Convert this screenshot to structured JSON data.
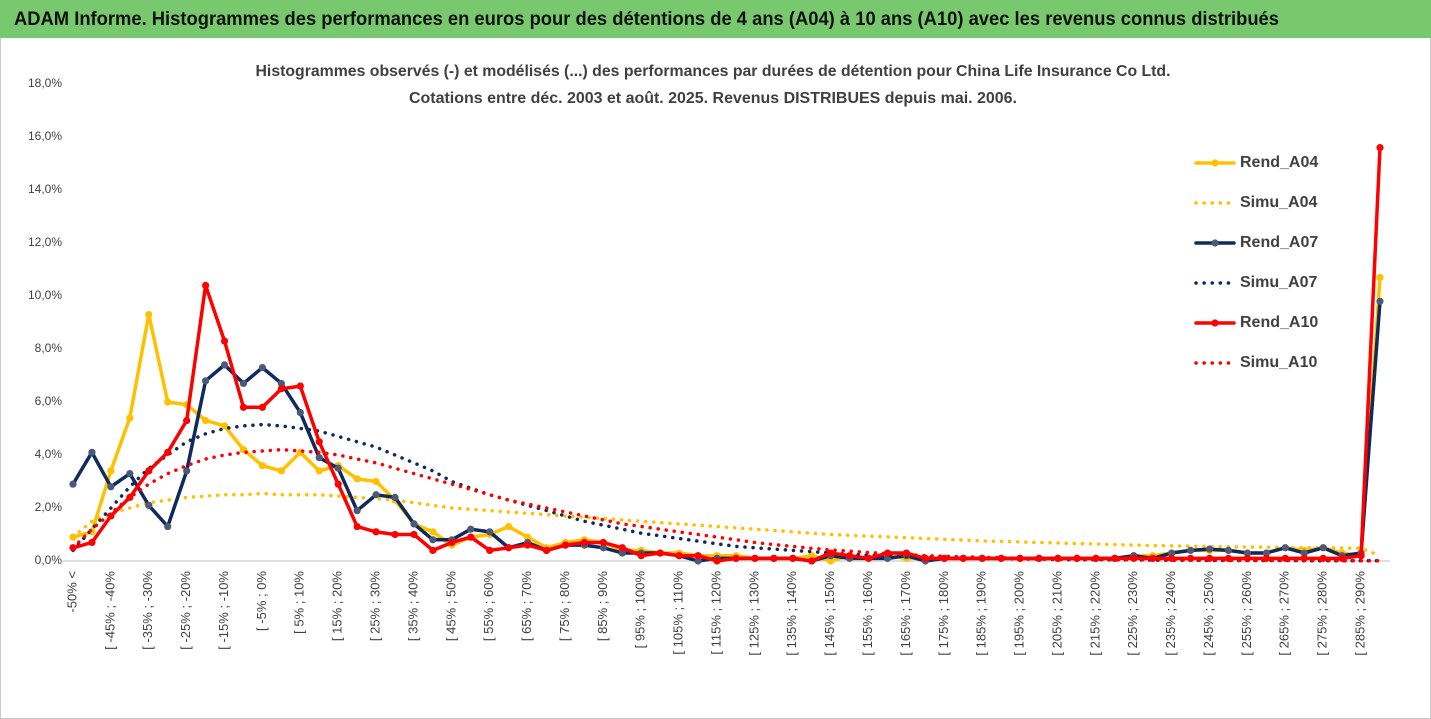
{
  "header": {
    "title": "ADAM Informe. Histogrammes des performances en euros pour des détentions de 4 ans (A04) à 10 ans (A10) avec les revenus connus distribués"
  },
  "chart_data": {
    "type": "line",
    "title": [
      "Histogrammes observés (-) et modélisés (...) des performances par durées de détention pour China Life Insurance Co Ltd.",
      "Cotations entre déc. 2003 et août. 2025. Revenus DISTRIBUES depuis mai. 2006."
    ],
    "categories": [
      "-50% <",
      null,
      "[ -45% ; -40%",
      null,
      "[ -35% ; -30%",
      null,
      "[ -25% ; -20%",
      null,
      "[ -15% ; -10%",
      null,
      "[ -5% ; 0%",
      null,
      "[ 5% ; 10%",
      null,
      "[ 15% ; 20%",
      null,
      "[ 25% ; 30%",
      null,
      "[ 35% ; 40%",
      null,
      "[ 45% ; 50%",
      null,
      "[ 55% ; 60%",
      null,
      "[ 65% ; 70%",
      null,
      "[ 75% ; 80%",
      null,
      "[ 85% ; 90%",
      null,
      "[ 95% ; 100%",
      null,
      "[ 105% ; 110%",
      null,
      "[ 115% ; 120%",
      null,
      "[ 125% ; 130%",
      null,
      "[ 135% ; 140%",
      null,
      "[ 145% ; 150%",
      null,
      "[ 155% ; 160%",
      null,
      "[ 165% ; 170%",
      null,
      "[ 175% ; 180%",
      null,
      "[ 185% ; 190%",
      null,
      "[ 195% ; 200%",
      null,
      "[ 205% ; 210%",
      null,
      "[ 215% ; 220%",
      null,
      "[ 225% ; 230%",
      null,
      "[ 235% ; 240%",
      null,
      "[ 245% ; 250%",
      null,
      "[ 255% ; 260%",
      null,
      "[ 265% ; 270%",
      null,
      "[ 275% ; 280%",
      null,
      "[ 285% ; 290%",
      null
    ],
    "series": [
      {
        "name": "Rend_A04",
        "color": "#ffc000",
        "style": "solid",
        "values": [
          0.9,
          1.1,
          3.4,
          5.4,
          9.3,
          6.0,
          5.9,
          5.3,
          5.1,
          4.2,
          3.6,
          3.4,
          4.1,
          3.4,
          3.6,
          3.1,
          3.0,
          2.3,
          1.4,
          1.1,
          0.6,
          0.9,
          1.0,
          1.3,
          0.9,
          0.5,
          0.7,
          0.8,
          0.7,
          0.4,
          0.4,
          0.3,
          0.3,
          0.2,
          0.2,
          0.2,
          0.1,
          0.1,
          0.1,
          0.2,
          0.0,
          0.2,
          0.1,
          0.2,
          0.1,
          0.1,
          0.1,
          0.1,
          0.1,
          0.1,
          0.1,
          0.1,
          0.1,
          0.1,
          0.1,
          0.1,
          0.2,
          0.2,
          0.3,
          0.4,
          0.4,
          0.4,
          0.3,
          0.3,
          0.5,
          0.4,
          0.5,
          0.3,
          0.2,
          10.7
        ]
      },
      {
        "name": "Simu_A04",
        "color": "#ffc000",
        "style": "dotted",
        "values": [
          0.9,
          1.5,
          1.8,
          2.0,
          2.2,
          2.3,
          2.4,
          2.45,
          2.5,
          2.5,
          2.55,
          2.5,
          2.5,
          2.5,
          2.45,
          2.4,
          2.35,
          2.3,
          2.2,
          2.1,
          2.0,
          1.95,
          1.9,
          1.85,
          1.8,
          1.75,
          1.7,
          1.65,
          1.6,
          1.55,
          1.5,
          1.45,
          1.4,
          1.35,
          1.3,
          1.25,
          1.2,
          1.15,
          1.1,
          1.05,
          1.0,
          0.97,
          0.94,
          0.91,
          0.88,
          0.85,
          0.82,
          0.79,
          0.76,
          0.74,
          0.72,
          0.7,
          0.68,
          0.66,
          0.64,
          0.62,
          0.6,
          0.58,
          0.57,
          0.56,
          0.55,
          0.54,
          0.53,
          0.52,
          0.51,
          0.5,
          0.5,
          0.49,
          0.48,
          0.2
        ]
      },
      {
        "name": "Rend_A07",
        "color": "#0f2a5c",
        "style": "solid",
        "values": [
          2.9,
          4.1,
          2.8,
          3.3,
          2.1,
          1.3,
          3.4,
          6.8,
          7.4,
          6.7,
          7.3,
          6.7,
          5.6,
          3.9,
          3.5,
          1.9,
          2.5,
          2.4,
          1.4,
          0.8,
          0.8,
          1.2,
          1.1,
          0.5,
          0.7,
          0.4,
          0.6,
          0.6,
          0.5,
          0.3,
          0.3,
          0.3,
          0.2,
          0.0,
          0.1,
          0.1,
          0.1,
          0.1,
          0.1,
          0.0,
          0.2,
          0.1,
          0.1,
          0.1,
          0.2,
          0.0,
          0.1,
          0.1,
          0.1,
          0.1,
          0.1,
          0.1,
          0.1,
          0.1,
          0.1,
          0.1,
          0.2,
          0.1,
          0.3,
          0.4,
          0.45,
          0.4,
          0.3,
          0.3,
          0.5,
          0.3,
          0.5,
          0.2,
          0.3,
          9.8
        ]
      },
      {
        "name": "Simu_A07",
        "color": "#0f2a5c",
        "style": "dotted",
        "values": [
          0.4,
          1.2,
          2.0,
          2.8,
          3.5,
          4.0,
          4.5,
          4.8,
          5.0,
          5.1,
          5.15,
          5.1,
          5.0,
          4.9,
          4.7,
          4.5,
          4.3,
          4.0,
          3.7,
          3.4,
          3.0,
          2.75,
          2.5,
          2.3,
          2.1,
          1.9,
          1.7,
          1.5,
          1.35,
          1.2,
          1.05,
          0.95,
          0.85,
          0.75,
          0.65,
          0.55,
          0.5,
          0.45,
          0.4,
          0.35,
          0.3,
          0.25,
          0.22,
          0.2,
          0.18,
          0.15,
          0.13,
          0.11,
          0.1,
          0.09,
          0.08,
          0.07,
          0.06,
          0.05,
          0.05,
          0.04,
          0.04,
          0.03,
          0.03,
          0.03,
          0.02,
          0.02,
          0.02,
          0.02,
          0.02,
          0.01,
          0.01,
          0.01,
          0.01,
          0.01
        ]
      },
      {
        "name": "Rend_A10",
        "color": "#ff0000",
        "style": "solid",
        "values": [
          0.5,
          0.7,
          1.7,
          2.4,
          3.4,
          4.1,
          5.3,
          10.4,
          8.3,
          5.8,
          5.8,
          6.5,
          6.6,
          4.5,
          2.9,
          1.3,
          1.1,
          1.0,
          1.0,
          0.4,
          0.7,
          0.9,
          0.4,
          0.5,
          0.6,
          0.4,
          0.6,
          0.7,
          0.7,
          0.5,
          0.2,
          0.3,
          0.2,
          0.2,
          0.0,
          0.1,
          0.1,
          0.1,
          0.1,
          0.0,
          0.3,
          0.2,
          0.1,
          0.3,
          0.3,
          0.1,
          0.1,
          0.1,
          0.1,
          0.1,
          0.1,
          0.1,
          0.1,
          0.1,
          0.1,
          0.1,
          0.1,
          0.1,
          0.1,
          0.1,
          0.1,
          0.1,
          0.1,
          0.1,
          0.1,
          0.1,
          0.1,
          0.1,
          0.2,
          15.6
        ]
      },
      {
        "name": "Simu_A10",
        "color": "#ff0000",
        "style": "dotted",
        "values": [
          0.5,
          1.2,
          1.8,
          2.4,
          2.9,
          3.3,
          3.6,
          3.85,
          4.0,
          4.1,
          4.15,
          4.2,
          4.15,
          4.1,
          4.0,
          3.85,
          3.7,
          3.5,
          3.3,
          3.1,
          2.9,
          2.7,
          2.5,
          2.3,
          2.15,
          2.0,
          1.85,
          1.7,
          1.55,
          1.4,
          1.3,
          1.2,
          1.1,
          1.0,
          0.9,
          0.8,
          0.7,
          0.62,
          0.55,
          0.48,
          0.42,
          0.37,
          0.32,
          0.28,
          0.24,
          0.2,
          0.18,
          0.16,
          0.14,
          0.12,
          0.1,
          0.09,
          0.08,
          0.07,
          0.06,
          0.05,
          0.05,
          0.04,
          0.04,
          0.03,
          0.03,
          0.03,
          0.02,
          0.02,
          0.02,
          0.02,
          0.02,
          0.01,
          0.01,
          0.01
        ]
      }
    ],
    "ylim": [
      0,
      18
    ],
    "yticks": [
      {
        "value": 0,
        "label": "0,0%"
      },
      {
        "value": 2,
        "label": "2,0%"
      },
      {
        "value": 4,
        "label": "4,0%"
      },
      {
        "value": 6,
        "label": "6,0%"
      },
      {
        "value": 8,
        "label": "8,0%"
      },
      {
        "value": 10,
        "label": "10,0%"
      },
      {
        "value": 12,
        "label": "12,0%"
      },
      {
        "value": 14,
        "label": "14,0%"
      },
      {
        "value": 16,
        "label": "16,0%"
      },
      {
        "value": 18,
        "label": "18,0%"
      }
    ],
    "grid": false,
    "legend": "right"
  }
}
